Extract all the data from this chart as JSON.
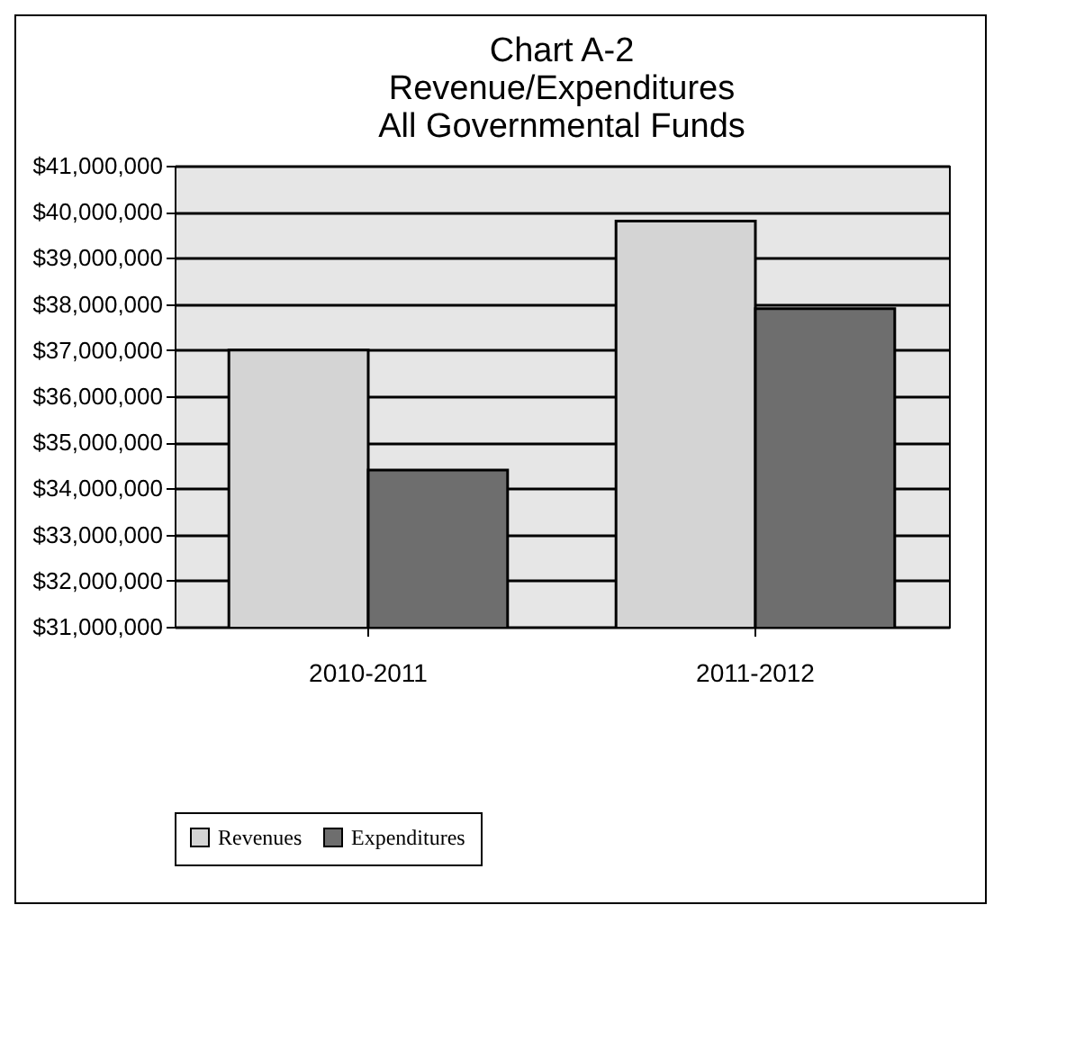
{
  "chart_data": {
    "type": "bar",
    "title": "Chart A-2\nRevenue/Expenditures\nAll Governmental Funds",
    "categories": [
      "2010-2011",
      "2011-2012"
    ],
    "series": [
      {
        "name": "Revenues",
        "color": "#d4d4d4",
        "values": [
          37000000,
          39800000
        ]
      },
      {
        "name": "Expenditures",
        "color": "#6e6e6e",
        "values": [
          34400000,
          37900000
        ]
      }
    ],
    "ylim": [
      31000000,
      41000000
    ],
    "yticks": [
      {
        "value": 31000000,
        "label": "$31,000,000"
      },
      {
        "value": 32000000,
        "label": "$32,000,000"
      },
      {
        "value": 33000000,
        "label": "$33,000,000"
      },
      {
        "value": 34000000,
        "label": "$34,000,000"
      },
      {
        "value": 35000000,
        "label": "$35,000,000"
      },
      {
        "value": 36000000,
        "label": "$36,000,000"
      },
      {
        "value": 37000000,
        "label": "$37,000,000"
      },
      {
        "value": 38000000,
        "label": "$38,000,000"
      },
      {
        "value": 39000000,
        "label": "$39,000,000"
      },
      {
        "value": 40000000,
        "label": "$40,000,000"
      },
      {
        "value": 41000000,
        "label": "$41,000,000"
      }
    ],
    "grid": "y",
    "legend": "bottom"
  }
}
